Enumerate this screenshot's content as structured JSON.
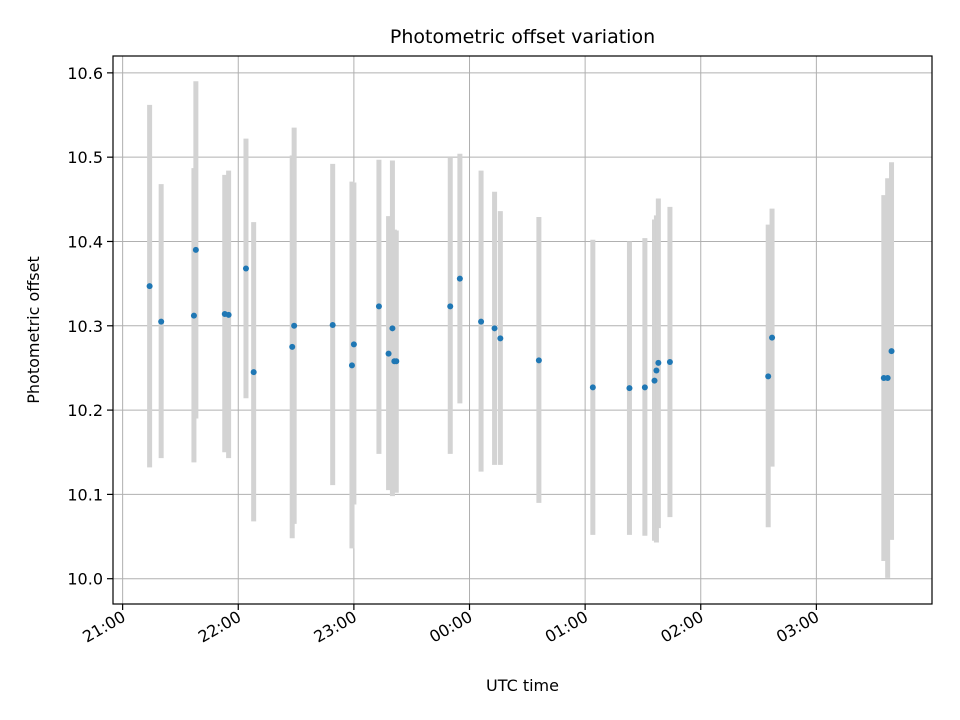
{
  "chart_data": {
    "type": "scatter",
    "title": "Photometric offset variation",
    "xlabel": "UTC time",
    "ylabel": "Photometric offset",
    "x_axis_kind": "time",
    "xlim": [
      "20:55",
      "04:00"
    ],
    "ylim": [
      9.97,
      10.62
    ],
    "x_ticks": [
      "21:00",
      "22:00",
      "23:00",
      "00:00",
      "01:00",
      "02:00",
      "03:00"
    ],
    "y_ticks": [
      "10.0",
      "10.1",
      "10.2",
      "10.3",
      "10.4",
      "10.5",
      "10.6"
    ],
    "grid": true,
    "point_color": "#1f77b4",
    "errorbar_color": "#d3d3d3",
    "series": [
      {
        "points": [
          {
            "t": "21:14",
            "y": 10.347,
            "lo": 10.132,
            "hi": 10.562
          },
          {
            "t": "21:20",
            "y": 10.305,
            "lo": 10.143,
            "hi": 10.468
          },
          {
            "t": "21:37",
            "y": 10.312,
            "lo": 10.138,
            "hi": 10.487
          },
          {
            "t": "21:38",
            "y": 10.39,
            "lo": 10.19,
            "hi": 10.59
          },
          {
            "t": "21:53",
            "y": 10.314,
            "lo": 10.15,
            "hi": 10.479
          },
          {
            "t": "21:55",
            "y": 10.313,
            "lo": 10.143,
            "hi": 10.484
          },
          {
            "t": "22:04",
            "y": 10.368,
            "lo": 10.214,
            "hi": 10.522
          },
          {
            "t": "22:08",
            "y": 10.245,
            "lo": 10.068,
            "hi": 10.423
          },
          {
            "t": "22:28",
            "y": 10.275,
            "lo": 10.048,
            "hi": 10.502
          },
          {
            "t": "22:29",
            "y": 10.3,
            "lo": 10.065,
            "hi": 10.535
          },
          {
            "t": "22:49",
            "y": 10.301,
            "lo": 10.111,
            "hi": 10.492
          },
          {
            "t": "22:59",
            "y": 10.253,
            "lo": 10.036,
            "hi": 10.471
          },
          {
            "t": "23:00",
            "y": 10.278,
            "lo": 10.088,
            "hi": 10.47
          },
          {
            "t": "23:13",
            "y": 10.323,
            "lo": 10.148,
            "hi": 10.497
          },
          {
            "t": "23:18",
            "y": 10.267,
            "lo": 10.105,
            "hi": 10.43
          },
          {
            "t": "23:20",
            "y": 10.297,
            "lo": 10.098,
            "hi": 10.496
          },
          {
            "t": "23:21",
            "y": 10.258,
            "lo": 10.103,
            "hi": 10.414
          },
          {
            "t": "23:22",
            "y": 10.258,
            "lo": 10.102,
            "hi": 10.413
          },
          {
            "t": "23:50",
            "y": 10.323,
            "lo": 10.148,
            "hi": 10.499
          },
          {
            "t": "23:55",
            "y": 10.356,
            "lo": 10.208,
            "hi": 10.504
          },
          {
            "t": "00:06",
            "y": 10.305,
            "lo": 10.127,
            "hi": 10.484
          },
          {
            "t": "00:13",
            "y": 10.297,
            "lo": 10.135,
            "hi": 10.459
          },
          {
            "t": "00:16",
            "y": 10.285,
            "lo": 10.135,
            "hi": 10.436
          },
          {
            "t": "00:36",
            "y": 10.259,
            "lo": 10.09,
            "hi": 10.429
          },
          {
            "t": "01:04",
            "y": 10.227,
            "lo": 10.052,
            "hi": 10.402
          },
          {
            "t": "01:23",
            "y": 10.226,
            "lo": 10.052,
            "hi": 10.4
          },
          {
            "t": "01:31",
            "y": 10.227,
            "lo": 10.051,
            "hi": 10.404
          },
          {
            "t": "01:36",
            "y": 10.235,
            "lo": 10.045,
            "hi": 10.426
          },
          {
            "t": "01:37",
            "y": 10.247,
            "lo": 10.043,
            "hi": 10.431
          },
          {
            "t": "01:38",
            "y": 10.256,
            "lo": 10.06,
            "hi": 10.451
          },
          {
            "t": "01:44",
            "y": 10.257,
            "lo": 10.073,
            "hi": 10.441
          },
          {
            "t": "02:35",
            "y": 10.24,
            "lo": 10.061,
            "hi": 10.42
          },
          {
            "t": "02:37",
            "y": 10.286,
            "lo": 10.133,
            "hi": 10.439
          },
          {
            "t": "03:35",
            "y": 10.238,
            "lo": 10.021,
            "hi": 10.455
          },
          {
            "t": "03:37",
            "y": 10.238,
            "lo": 10.001,
            "hi": 10.475
          },
          {
            "t": "03:39",
            "y": 10.27,
            "lo": 10.046,
            "hi": 10.494
          }
        ]
      }
    ]
  }
}
